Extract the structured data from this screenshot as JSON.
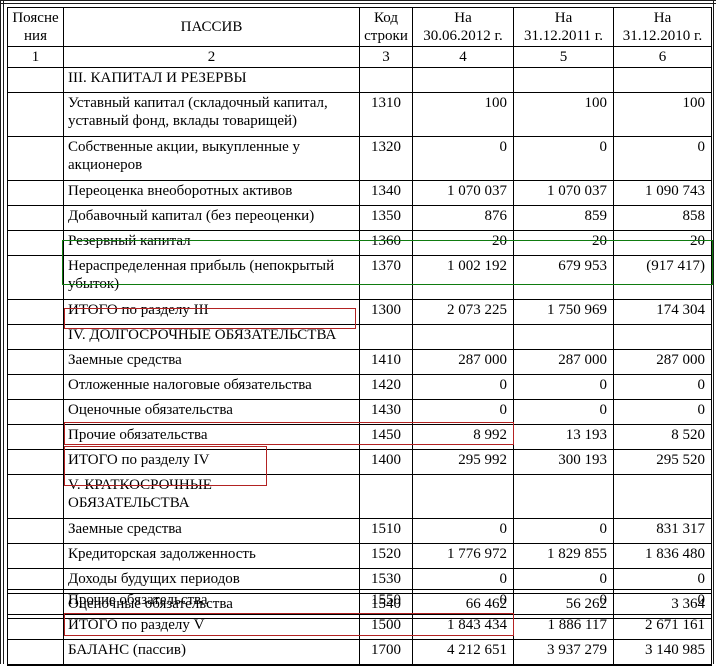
{
  "header": {
    "explanations": "Пояснения",
    "passiv": "ПАССИВ",
    "code_line1": "Код",
    "code_line2": "строки",
    "col4": {
      "prefix": "На",
      "date": "30.06.2012 г."
    },
    "col5": {
      "prefix": "На",
      "date": "31.12.2011 г."
    },
    "col6": {
      "prefix": "На",
      "date": "31.12.2010 г."
    },
    "column_numbers": [
      "1",
      "2",
      "3",
      "4",
      "5",
      "6"
    ]
  },
  "rows": [
    {
      "type": "section",
      "label": "III. КАПИТАЛ И РЕЗЕРВЫ"
    },
    {
      "type": "item",
      "label": "Уставный капитал (складочный капитал, уставный фонд, вклады товарищей)",
      "code": "1310",
      "v2012": "100",
      "v2011": "100",
      "v2010": "100"
    },
    {
      "type": "item",
      "label": "Собственные акции, выкупленные у акционеров",
      "code": "1320",
      "v2012": "0",
      "v2011": "0",
      "v2010": "0"
    },
    {
      "type": "item",
      "label": "Переоценка внеоборотных активов",
      "code": "1340",
      "v2012": "1 070 037",
      "v2011": "1 070 037",
      "v2010": "1 090 743"
    },
    {
      "type": "item",
      "label": "Добавочный капитал (без переоценки)",
      "code": "1350",
      "v2012": "876",
      "v2011": "859",
      "v2010": "858"
    },
    {
      "type": "item",
      "label": "Резервный капитал",
      "code": "1360",
      "v2012": "20",
      "v2011": "20",
      "v2010": "20"
    },
    {
      "type": "item",
      "label": "Нераспределенная прибыль (непокрытый убыток)",
      "code": "1370",
      "v2012": "1 002 192",
      "v2011": "679 953",
      "v2010": "(917 417)"
    },
    {
      "type": "total",
      "label": "ИТОГО по разделу III",
      "code": "1300",
      "v2012": "2 073 225",
      "v2011": "1 750 969",
      "v2010": "174 304"
    },
    {
      "type": "section",
      "label": "IV. ДОЛГОСРОЧНЫЕ ОБЯЗАТЕЛЬСТВА"
    },
    {
      "type": "item",
      "label": "Заемные средства",
      "code": "1410",
      "v2012": "287 000",
      "v2011": "287 000",
      "v2010": "287 000"
    },
    {
      "type": "item",
      "label": "Отложенные налоговые обязательства",
      "code": "1420",
      "v2012": "0",
      "v2011": "0",
      "v2010": "0"
    },
    {
      "type": "item",
      "label": "Оценочные обязательства",
      "code": "1430",
      "v2012": "0",
      "v2011": "0",
      "v2010": "0"
    },
    {
      "type": "item",
      "label": "Прочие обязательства",
      "code": "1450",
      "v2012": "8 992",
      "v2011": "13 193",
      "v2010": "8 520"
    },
    {
      "type": "total",
      "label": "ИТОГО по разделу IV",
      "code": "1400",
      "v2012": "295 992",
      "v2011": "300 193",
      "v2010": "295 520"
    },
    {
      "type": "section",
      "label": "V. КРАТКОСРОЧНЫЕ",
      "label2": "ОБЯЗАТЕЛЬСТВА"
    },
    {
      "type": "item",
      "label": "Заемные средства",
      "code": "1510",
      "v2012": "0",
      "v2011": "0",
      "v2010": "831 317"
    },
    {
      "type": "item",
      "label": "Кредиторская задолженность",
      "code": "1520",
      "v2012": "1 776 972",
      "v2011": "1 829 855",
      "v2010": "1 836 480"
    },
    {
      "type": "item",
      "label": "Доходы будущих периодов",
      "code": "1530",
      "v2012": "0",
      "v2011": "0",
      "v2010": "0"
    },
    {
      "type": "item",
      "label": "Оценочные обязательства",
      "code": "1540",
      "v2012": "66 462",
      "v2011": "56 262",
      "v2010": "3 364"
    }
  ],
  "rows2": [
    {
      "type": "item",
      "label": "Прочие обязательства",
      "code": "1550",
      "v2012": "0",
      "v2011": "0",
      "v2010": "0"
    },
    {
      "type": "total",
      "label": "ИТОГО по разделу V",
      "code": "1500",
      "v2012": "1 843 434",
      "v2011": "1 886 117",
      "v2010": "2 671 161"
    },
    {
      "type": "total",
      "label": "БАЛАНС (пассив)",
      "code": "1700",
      "v2012": "4 212 651",
      "v2011": "3 937 279",
      "v2010": "3 140 985"
    }
  ],
  "annotations": {
    "green_hex": "#0f7b0f",
    "red_hex": "#b22222"
  }
}
